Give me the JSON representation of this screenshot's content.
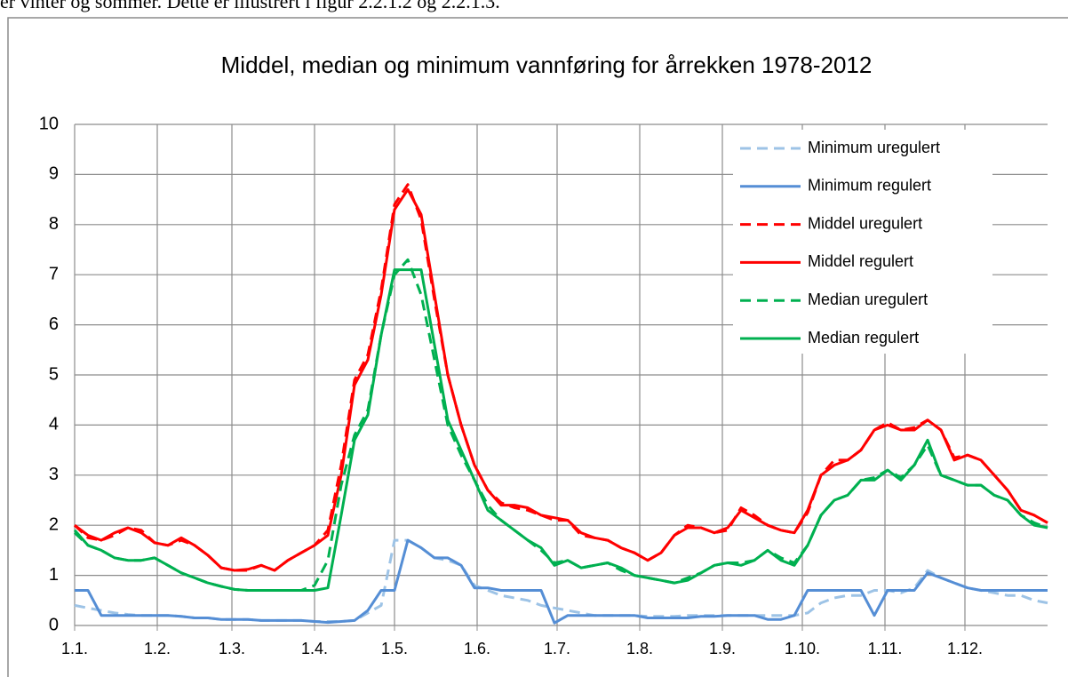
{
  "page_text": "er vinter og sommer. Dette er illustrert i figur 2.2.1.2 og 2.2.1.3.",
  "chart_data": {
    "type": "line",
    "title": "Middel, median og minimum vannføring for årrekken 1978-2012",
    "x": [
      1,
      6,
      11,
      16,
      21,
      26,
      31,
      36,
      41,
      46,
      51,
      56,
      61,
      66,
      71,
      76,
      81,
      86,
      91,
      96,
      101,
      106,
      111,
      116,
      121,
      126,
      131,
      136,
      141,
      146,
      151,
      156,
      161,
      166,
      171,
      176,
      181,
      186,
      191,
      196,
      201,
      206,
      211,
      216,
      221,
      226,
      231,
      236,
      241,
      246,
      251,
      256,
      261,
      266,
      271,
      276,
      281,
      286,
      291,
      296,
      301,
      306,
      311,
      316,
      321,
      326,
      331,
      336,
      341,
      346,
      351,
      356,
      361,
      366
    ],
    "xlim": [
      1,
      366
    ],
    "xticks": [
      {
        "value": 1,
        "label": "1.1."
      },
      {
        "value": 32,
        "label": "1.2."
      },
      {
        "value": 60,
        "label": "1.3."
      },
      {
        "value": 91,
        "label": "1.4."
      },
      {
        "value": 121,
        "label": "1.5."
      },
      {
        "value": 152,
        "label": "1.6."
      },
      {
        "value": 182,
        "label": "1.7."
      },
      {
        "value": 213,
        "label": "1.8."
      },
      {
        "value": 244,
        "label": "1.9."
      },
      {
        "value": 274,
        "label": "1.10."
      },
      {
        "value": 305,
        "label": "1.11."
      },
      {
        "value": 335,
        "label": "1.12."
      }
    ],
    "ylim": [
      0,
      10
    ],
    "yticks": [
      0,
      1,
      2,
      3,
      4,
      5,
      6,
      7,
      8,
      9,
      10
    ],
    "grid": true,
    "legend": "top-right",
    "series": [
      {
        "name": "Minimum uregulert",
        "color": "#9dc3e6",
        "dashed": true,
        "values": [
          0.4,
          0.35,
          0.3,
          0.25,
          0.22,
          0.2,
          0.2,
          0.2,
          0.18,
          0.15,
          0.15,
          0.12,
          0.12,
          0.12,
          0.1,
          0.1,
          0.1,
          0.1,
          0.08,
          0.08,
          0.08,
          0.1,
          0.25,
          0.4,
          1.7,
          1.7,
          1.55,
          1.35,
          1.3,
          1.2,
          0.8,
          0.7,
          0.6,
          0.55,
          0.5,
          0.4,
          0.35,
          0.3,
          0.25,
          0.2,
          0.2,
          0.2,
          0.2,
          0.18,
          0.18,
          0.18,
          0.2,
          0.2,
          0.2,
          0.2,
          0.2,
          0.2,
          0.2,
          0.2,
          0.2,
          0.25,
          0.45,
          0.55,
          0.6,
          0.6,
          0.7,
          0.7,
          0.65,
          0.75,
          1.1,
          0.95,
          0.85,
          0.75,
          0.7,
          0.65,
          0.6,
          0.6,
          0.5,
          0.45
        ]
      },
      {
        "name": "Minimum regulert",
        "color": "#558ed5",
        "dashed": false,
        "values": [
          0.7,
          0.7,
          0.2,
          0.2,
          0.2,
          0.2,
          0.2,
          0.2,
          0.18,
          0.15,
          0.15,
          0.12,
          0.12,
          0.12,
          0.1,
          0.1,
          0.1,
          0.1,
          0.08,
          0.06,
          0.08,
          0.1,
          0.3,
          0.7,
          0.7,
          1.7,
          1.55,
          1.35,
          1.35,
          1.2,
          0.75,
          0.75,
          0.7,
          0.7,
          0.7,
          0.7,
          0.05,
          0.2,
          0.2,
          0.2,
          0.2,
          0.2,
          0.2,
          0.15,
          0.15,
          0.15,
          0.15,
          0.18,
          0.18,
          0.2,
          0.2,
          0.2,
          0.12,
          0.12,
          0.2,
          0.7,
          0.7,
          0.7,
          0.7,
          0.7,
          0.2,
          0.7,
          0.7,
          0.7,
          1.05,
          0.95,
          0.85,
          0.75,
          0.7,
          0.7,
          0.7,
          0.7,
          0.7,
          0.7
        ]
      },
      {
        "name": "Middel uregulert",
        "color": "#ff0000",
        "dashed": true,
        "values": [
          2.0,
          1.75,
          1.7,
          1.8,
          1.95,
          1.9,
          1.65,
          1.6,
          1.7,
          1.6,
          1.4,
          1.15,
          1.1,
          1.1,
          1.2,
          1.1,
          1.3,
          1.45,
          1.6,
          1.9,
          3.2,
          4.9,
          5.4,
          6.7,
          8.4,
          8.8,
          8.1,
          6.5,
          5.0,
          4.0,
          3.2,
          2.7,
          2.45,
          2.35,
          2.3,
          2.2,
          2.1,
          2.1,
          1.8,
          1.75,
          1.7,
          1.55,
          1.45,
          1.3,
          1.45,
          1.8,
          2.0,
          1.95,
          1.85,
          1.9,
          2.35,
          2.2,
          2.0,
          1.9,
          1.85,
          2.25,
          3.0,
          3.3,
          3.3,
          3.5,
          3.9,
          4.05,
          3.9,
          3.95,
          4.1,
          3.9,
          3.35,
          3.4,
          3.3,
          3.0,
          2.7,
          2.3,
          2.2,
          2.05
        ]
      },
      {
        "name": "Middel regulert",
        "color": "#ff0000",
        "dashed": false,
        "values": [
          2.0,
          1.8,
          1.7,
          1.85,
          1.95,
          1.85,
          1.65,
          1.6,
          1.75,
          1.6,
          1.4,
          1.15,
          1.1,
          1.12,
          1.2,
          1.1,
          1.3,
          1.45,
          1.6,
          1.8,
          3.0,
          4.8,
          5.3,
          6.6,
          8.3,
          8.7,
          8.2,
          6.6,
          5.0,
          4.0,
          3.2,
          2.7,
          2.4,
          2.4,
          2.35,
          2.2,
          2.15,
          2.1,
          1.85,
          1.75,
          1.7,
          1.55,
          1.45,
          1.3,
          1.45,
          1.8,
          1.95,
          1.95,
          1.85,
          1.95,
          2.3,
          2.15,
          2.0,
          1.9,
          1.85,
          2.3,
          3.0,
          3.2,
          3.3,
          3.5,
          3.9,
          4.0,
          3.9,
          3.9,
          4.1,
          3.9,
          3.3,
          3.4,
          3.3,
          3.0,
          2.7,
          2.3,
          2.2,
          2.05
        ]
      },
      {
        "name": "Median uregulert",
        "color": "#00b050",
        "dashed": true,
        "values": [
          1.85,
          1.6,
          1.5,
          1.35,
          1.3,
          1.3,
          1.35,
          1.2,
          1.05,
          0.95,
          0.85,
          0.78,
          0.72,
          0.7,
          0.7,
          0.7,
          0.7,
          0.7,
          0.8,
          1.3,
          2.8,
          3.8,
          4.3,
          5.8,
          7.0,
          7.3,
          6.6,
          5.3,
          4.0,
          3.4,
          2.9,
          2.4,
          2.1,
          1.9,
          1.7,
          1.5,
          1.25,
          1.3,
          1.15,
          1.2,
          1.25,
          1.1,
          1.0,
          0.95,
          0.9,
          0.85,
          0.95,
          1.05,
          1.2,
          1.25,
          1.25,
          1.3,
          1.5,
          1.35,
          1.25,
          1.6,
          2.2,
          2.5,
          2.6,
          2.9,
          2.95,
          3.1,
          2.95,
          3.2,
          3.6,
          3.0,
          2.9,
          2.8,
          2.8,
          2.6,
          2.5,
          2.2,
          2.05,
          1.95
        ]
      },
      {
        "name": "Median regulert",
        "color": "#00b050",
        "dashed": false,
        "values": [
          1.9,
          1.6,
          1.5,
          1.35,
          1.3,
          1.3,
          1.35,
          1.2,
          1.05,
          0.95,
          0.85,
          0.78,
          0.72,
          0.7,
          0.7,
          0.7,
          0.7,
          0.7,
          0.7,
          0.75,
          2.2,
          3.7,
          4.2,
          5.8,
          7.1,
          7.1,
          7.1,
          5.6,
          4.1,
          3.5,
          2.9,
          2.3,
          2.1,
          1.9,
          1.7,
          1.55,
          1.2,
          1.3,
          1.15,
          1.2,
          1.25,
          1.15,
          1.0,
          0.95,
          0.9,
          0.85,
          0.9,
          1.05,
          1.2,
          1.25,
          1.2,
          1.3,
          1.5,
          1.3,
          1.2,
          1.6,
          2.2,
          2.5,
          2.6,
          2.9,
          2.9,
          3.1,
          2.9,
          3.2,
          3.7,
          3.0,
          2.9,
          2.8,
          2.8,
          2.6,
          2.5,
          2.2,
          2.0,
          1.95
        ]
      }
    ]
  }
}
